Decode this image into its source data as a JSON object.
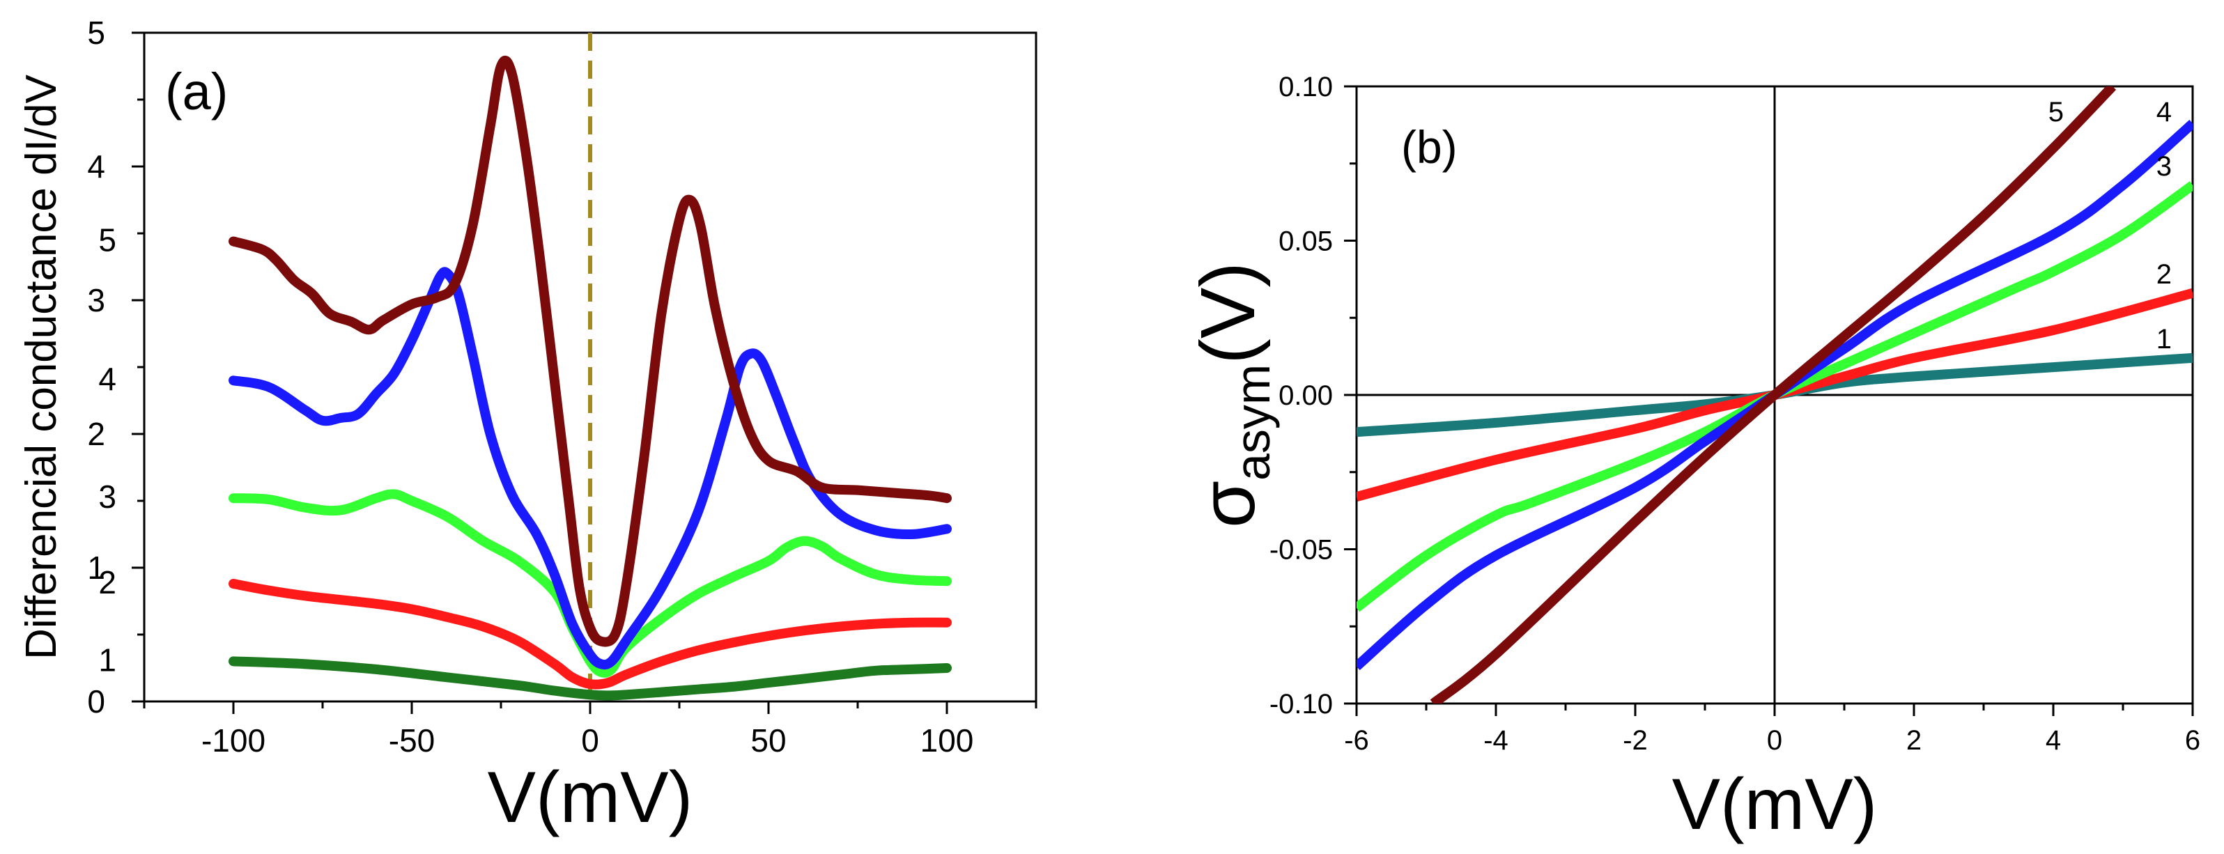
{
  "chart_data": [
    {
      "type": "line",
      "panel_label": "(a)",
      "xlabel": "V(mV)",
      "ylabel": "Differencial conductance dI/dV",
      "xlim": [
        -125,
        125
      ],
      "ylim": [
        0,
        5
      ],
      "xticks": [
        -100,
        -50,
        0,
        50,
        100
      ],
      "yticks": [
        0,
        1,
        2,
        3,
        4,
        5
      ],
      "vline": {
        "x": 0,
        "style": "dashed",
        "color": "#a38a1e"
      },
      "grid": false,
      "series": [
        {
          "name": "1",
          "color": "#1e7a1e",
          "points": [
            [
              -100,
              0.3
            ],
            [
              -80,
              0.28
            ],
            [
              -60,
              0.24
            ],
            [
              -40,
              0.18
            ],
            [
              -20,
              0.12
            ],
            [
              -10,
              0.08
            ],
            [
              0,
              0.05
            ],
            [
              5,
              0.045
            ],
            [
              10,
              0.05
            ],
            [
              20,
              0.07
            ],
            [
              30,
              0.09
            ],
            [
              40,
              0.11
            ],
            [
              50,
              0.14
            ],
            [
              60,
              0.17
            ],
            [
              70,
              0.2
            ],
            [
              80,
              0.23
            ],
            [
              90,
              0.24
            ],
            [
              100,
              0.25
            ]
          ]
        },
        {
          "name": "2",
          "color": "#ff1a1a",
          "points": [
            [
              -100,
              0.88
            ],
            [
              -90,
              0.83
            ],
            [
              -80,
              0.79
            ],
            [
              -70,
              0.76
            ],
            [
              -60,
              0.73
            ],
            [
              -50,
              0.69
            ],
            [
              -40,
              0.63
            ],
            [
              -30,
              0.56
            ],
            [
              -20,
              0.45
            ],
            [
              -10,
              0.28
            ],
            [
              -5,
              0.18
            ],
            [
              0,
              0.13
            ],
            [
              5,
              0.14
            ],
            [
              10,
              0.2
            ],
            [
              20,
              0.3
            ],
            [
              30,
              0.38
            ],
            [
              40,
              0.44
            ],
            [
              50,
              0.49
            ],
            [
              60,
              0.53
            ],
            [
              70,
              0.56
            ],
            [
              80,
              0.58
            ],
            [
              90,
              0.59
            ],
            [
              100,
              0.59
            ]
          ]
        },
        {
          "name": "3",
          "color": "#33ff33",
          "points": [
            [
              -100,
              1.52
            ],
            [
              -90,
              1.51
            ],
            [
              -80,
              1.45
            ],
            [
              -70,
              1.43
            ],
            [
              -60,
              1.52
            ],
            [
              -55,
              1.55
            ],
            [
              -50,
              1.5
            ],
            [
              -40,
              1.38
            ],
            [
              -30,
              1.2
            ],
            [
              -20,
              1.05
            ],
            [
              -10,
              0.82
            ],
            [
              -5,
              0.55
            ],
            [
              0,
              0.3
            ],
            [
              3,
              0.22
            ],
            [
              6,
              0.24
            ],
            [
              10,
              0.4
            ],
            [
              20,
              0.62
            ],
            [
              30,
              0.8
            ],
            [
              40,
              0.93
            ],
            [
              50,
              1.05
            ],
            [
              55,
              1.15
            ],
            [
              60,
              1.2
            ],
            [
              65,
              1.16
            ],
            [
              70,
              1.07
            ],
            [
              80,
              0.95
            ],
            [
              90,
              0.91
            ],
            [
              100,
              0.9
            ]
          ]
        },
        {
          "name": "4",
          "color": "#1a1aff",
          "points": [
            [
              -100,
              2.4
            ],
            [
              -90,
              2.35
            ],
            [
              -80,
              2.18
            ],
            [
              -75,
              2.1
            ],
            [
              -70,
              2.12
            ],
            [
              -65,
              2.15
            ],
            [
              -60,
              2.3
            ],
            [
              -55,
              2.45
            ],
            [
              -50,
              2.7
            ],
            [
              -45,
              3.0
            ],
            [
              -42,
              3.18
            ],
            [
              -40,
              3.2
            ],
            [
              -37,
              3.05
            ],
            [
              -33,
              2.6
            ],
            [
              -28,
              2.0
            ],
            [
              -22,
              1.55
            ],
            [
              -15,
              1.25
            ],
            [
              -10,
              0.95
            ],
            [
              -5,
              0.58
            ],
            [
              0,
              0.35
            ],
            [
              3,
              0.28
            ],
            [
              6,
              0.3
            ],
            [
              10,
              0.45
            ],
            [
              20,
              0.85
            ],
            [
              30,
              1.4
            ],
            [
              38,
              2.1
            ],
            [
              42,
              2.5
            ],
            [
              45,
              2.6
            ],
            [
              48,
              2.55
            ],
            [
              52,
              2.3
            ],
            [
              57,
              1.95
            ],
            [
              62,
              1.65
            ],
            [
              70,
              1.4
            ],
            [
              80,
              1.28
            ],
            [
              90,
              1.25
            ],
            [
              100,
              1.29
            ]
          ]
        },
        {
          "name": "5",
          "color": "#7b0a0a",
          "points": [
            [
              -100,
              3.44
            ],
            [
              -92,
              3.38
            ],
            [
              -88,
              3.3
            ],
            [
              -83,
              3.15
            ],
            [
              -78,
              3.05
            ],
            [
              -73,
              2.9
            ],
            [
              -67,
              2.84
            ],
            [
              -62,
              2.78
            ],
            [
              -58,
              2.85
            ],
            [
              -50,
              2.97
            ],
            [
              -43,
              3.02
            ],
            [
              -38,
              3.12
            ],
            [
              -33,
              3.55
            ],
            [
              -28,
              4.3
            ],
            [
              -25,
              4.75
            ],
            [
              -22,
              4.7
            ],
            [
              -18,
              4.1
            ],
            [
              -14,
              3.3
            ],
            [
              -10,
              2.4
            ],
            [
              -6,
              1.5
            ],
            [
              -3,
              0.85
            ],
            [
              0,
              0.55
            ],
            [
              3,
              0.45
            ],
            [
              7,
              0.5
            ],
            [
              10,
              0.85
            ],
            [
              15,
              1.8
            ],
            [
              20,
              2.9
            ],
            [
              25,
              3.6
            ],
            [
              28,
              3.75
            ],
            [
              31,
              3.55
            ],
            [
              35,
              2.95
            ],
            [
              40,
              2.4
            ],
            [
              45,
              2.0
            ],
            [
              50,
              1.8
            ],
            [
              58,
              1.72
            ],
            [
              65,
              1.6
            ],
            [
              75,
              1.58
            ],
            [
              85,
              1.56
            ],
            [
              95,
              1.54
            ],
            [
              100,
              1.52
            ]
          ]
        }
      ]
    },
    {
      "type": "line",
      "panel_label": "(b)",
      "xlabel": "V(mV)",
      "ylabel_main": "σ",
      "ylabel_sub": "asym",
      "ylabel_tail": "(V)",
      "xlim": [
        -6,
        6
      ],
      "ylim": [
        -0.1,
        0.1
      ],
      "xticks": [
        -6,
        -4,
        -2,
        0,
        2,
        4,
        6
      ],
      "yticks": [
        "-0.10",
        "-0.05",
        "0.00",
        "0.05",
        "0.10"
      ],
      "grid": false,
      "series": [
        {
          "name": "1",
          "color": "#1a7a7a",
          "points": [
            [
              -6,
              -0.012
            ],
            [
              -4,
              -0.009
            ],
            [
              -2,
              -0.005
            ],
            [
              -1,
              -0.003
            ],
            [
              0,
              0
            ],
            [
              1,
              0.004
            ],
            [
              2,
              0.006
            ],
            [
              4,
              0.009
            ],
            [
              6,
              0.012
            ]
          ]
        },
        {
          "name": "2",
          "color": "#ff1a1a",
          "points": [
            [
              -6,
              -0.033
            ],
            [
              -4,
              -0.021
            ],
            [
              -2,
              -0.011
            ],
            [
              -1,
              -0.005
            ],
            [
              0,
              0
            ],
            [
              1,
              0.006
            ],
            [
              2,
              0.012
            ],
            [
              4,
              0.021
            ],
            [
              6,
              0.033
            ]
          ]
        },
        {
          "name": "3",
          "color": "#33ff33",
          "points": [
            [
              -6,
              -0.069
            ],
            [
              -5,
              -0.052
            ],
            [
              -4,
              -0.039
            ],
            [
              -3.5,
              -0.035
            ],
            [
              -2,
              -0.022
            ],
            [
              -1,
              -0.012
            ],
            [
              0,
              0
            ],
            [
              1,
              0.01
            ],
            [
              2,
              0.02
            ],
            [
              3.5,
              0.035
            ],
            [
              4,
              0.04
            ],
            [
              5,
              0.052
            ],
            [
              6,
              0.068
            ]
          ]
        },
        {
          "name": "4",
          "color": "#1a1aff",
          "points": [
            [
              -6,
              -0.088
            ],
            [
              -5,
              -0.068
            ],
            [
              -4,
              -0.052
            ],
            [
              -2,
              -0.03
            ],
            [
              -1,
              -0.015
            ],
            [
              0,
              0
            ],
            [
              1,
              0.015
            ],
            [
              2,
              0.03
            ],
            [
              4,
              0.052
            ],
            [
              5,
              0.068
            ],
            [
              6,
              0.088
            ]
          ]
        },
        {
          "name": "5",
          "color": "#7b0a0a",
          "points": [
            [
              -4.9,
              -0.1
            ],
            [
              -4,
              -0.084
            ],
            [
              -2,
              -0.041
            ],
            [
              -1,
              -0.02
            ],
            [
              0,
              0
            ],
            [
              1,
              0.019
            ],
            [
              2,
              0.038
            ],
            [
              3,
              0.058
            ],
            [
              4,
              0.08
            ],
            [
              4.85,
              0.1
            ]
          ]
        }
      ]
    }
  ]
}
